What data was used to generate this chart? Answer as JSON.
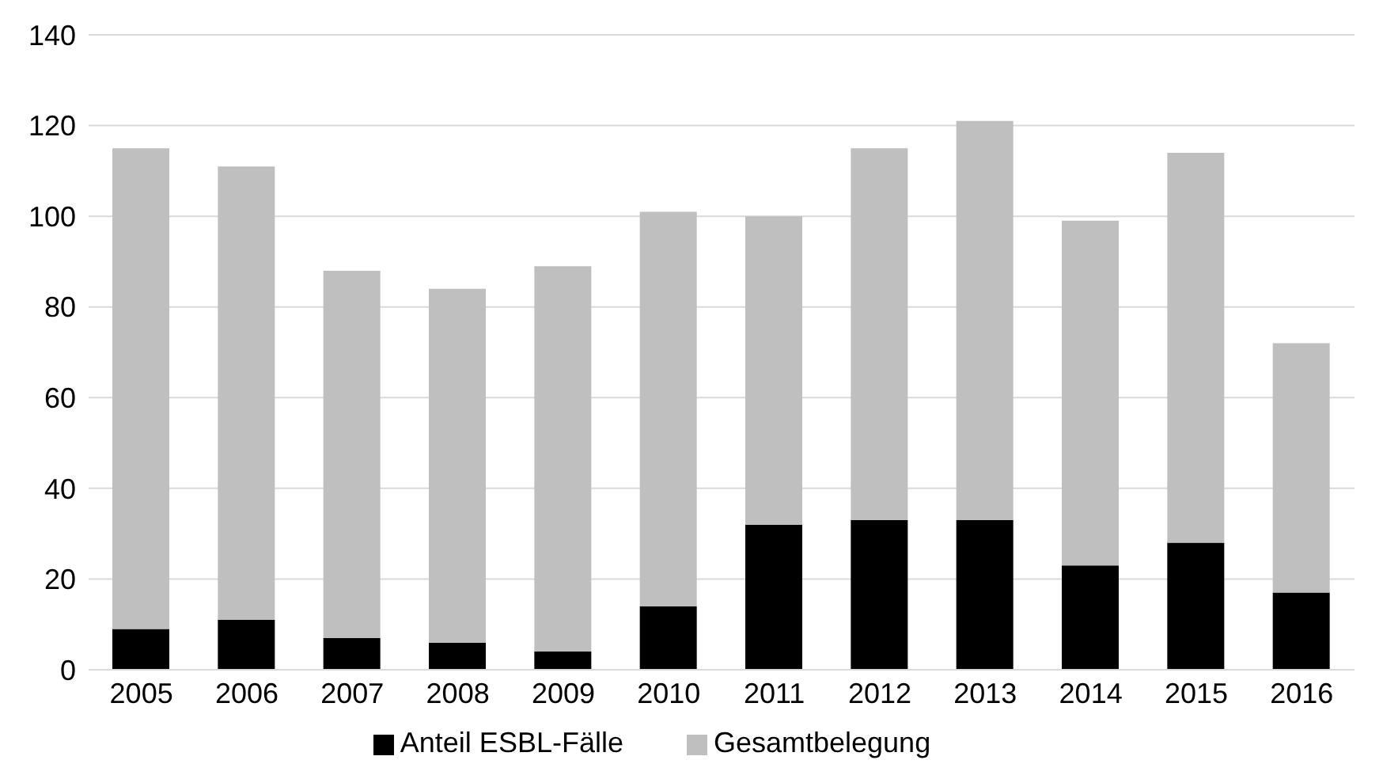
{
  "chart_data": {
    "type": "bar",
    "stacked": true,
    "categories": [
      "2005",
      "2006",
      "2007",
      "2008",
      "2009",
      "2010",
      "2011",
      "2012",
      "2013",
      "2014",
      "2015",
      "2016"
    ],
    "series": [
      {
        "name": "Anteil ESBL-Fälle",
        "color": "#000000",
        "values": [
          9,
          11,
          7,
          6,
          4,
          14,
          32,
          33,
          33,
          23,
          28,
          17
        ]
      },
      {
        "name": "Gesamtbelegung",
        "color": "#bfbfbf",
        "values": [
          106,
          100,
          81,
          78,
          85,
          87,
          68,
          82,
          88,
          76,
          86,
          55
        ]
      }
    ],
    "ylim": [
      0,
      140
    ],
    "yticks": [
      0,
      20,
      40,
      60,
      80,
      100,
      120,
      140
    ],
    "grid": "y",
    "legend": "bottom"
  }
}
